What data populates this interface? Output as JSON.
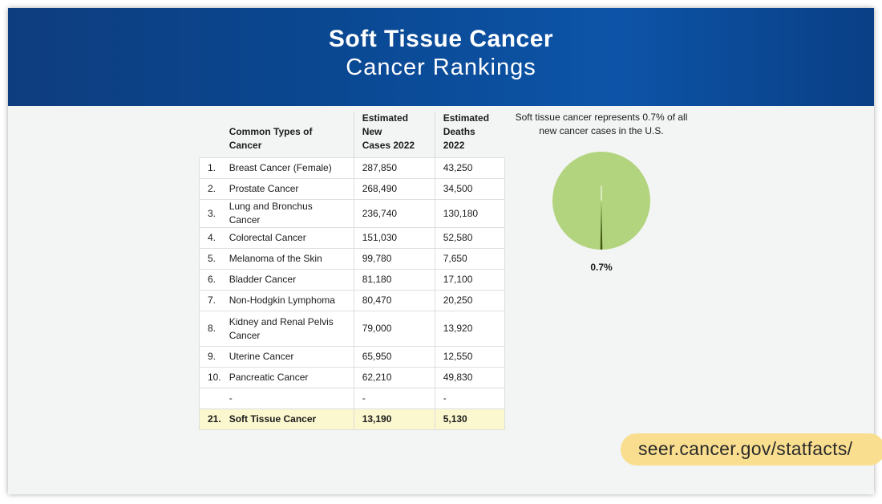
{
  "header": {
    "title": "Soft Tissue Cancer",
    "subtitle": "Cancer Rankings"
  },
  "table": {
    "headers": {
      "type": "Common Types of Cancer",
      "cases": [
        "Estimated",
        "New",
        "Cases 2022"
      ],
      "deaths": [
        "Estimated",
        "Deaths",
        "2022"
      ]
    },
    "rows": [
      {
        "rank": "1.",
        "name": "Breast Cancer (Female)",
        "cases": "287,850",
        "deaths": "43,250"
      },
      {
        "rank": "2.",
        "name": "Prostate Cancer",
        "cases": "268,490",
        "deaths": "34,500"
      },
      {
        "rank": "3.",
        "name": "Lung and Bronchus Cancer",
        "cases": "236,740",
        "deaths": "130,180"
      },
      {
        "rank": "4.",
        "name": "Colorectal Cancer",
        "cases": "151,030",
        "deaths": "52,580"
      },
      {
        "rank": "5.",
        "name": "Melanoma of the Skin",
        "cases": "99,780",
        "deaths": "7,650"
      },
      {
        "rank": "6.",
        "name": "Bladder Cancer",
        "cases": "81,180",
        "deaths": "17,100"
      },
      {
        "rank": "7.",
        "name": "Non-Hodgkin Lymphoma",
        "cases": "80,470",
        "deaths": "20,250"
      },
      {
        "rank": "8.",
        "name": "Kidney and Renal Pelvis Cancer",
        "cases": "79,000",
        "deaths": "13,920"
      },
      {
        "rank": "9.",
        "name": "Uterine Cancer",
        "cases": "65,950",
        "deaths": "12,550"
      },
      {
        "rank": "10.",
        "name": "Pancreatic Cancer",
        "cases": "62,210",
        "deaths": "49,830"
      },
      {
        "rank": "",
        "name": "-",
        "cases": "-",
        "deaths": "-"
      },
      {
        "rank": "21.",
        "name": "Soft Tissue Cancer",
        "cases": "13,190",
        "deaths": "5,130"
      }
    ]
  },
  "chart_data": {
    "type": "pie",
    "caption": "Soft tissue cancer represents 0.7% of all new cancer cases in the U.S.",
    "slices": [
      {
        "label": "0.7%",
        "value": 0.7,
        "color": "#3f5a10"
      },
      {
        "label": "",
        "value": 99.3,
        "color": "#b3d47f"
      }
    ]
  },
  "footer": {
    "url": "seer.cancer.gov/statfacts/"
  },
  "colors": {
    "header_bg": "#0a4790",
    "highlight_row": "#fbf7cf",
    "pie_main": "#b3d47f",
    "pie_slice": "#3f5a10",
    "url_pill": "#f9de8f"
  }
}
